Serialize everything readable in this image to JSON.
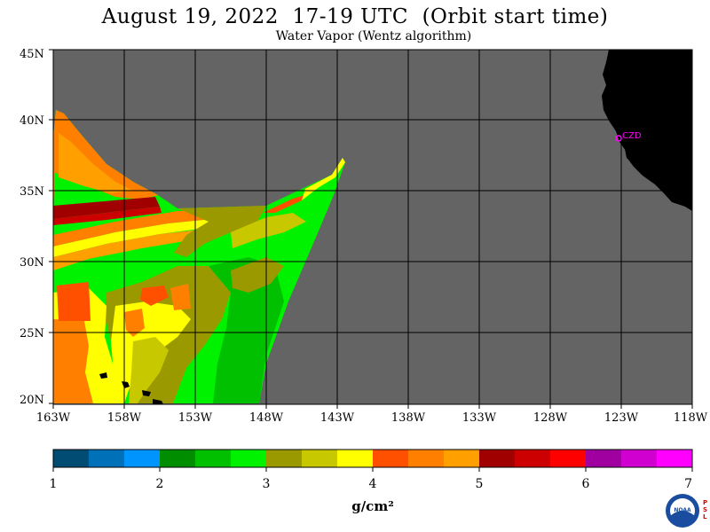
{
  "header": {
    "title": "August 19, 2022  17-19 UTC  (Orbit start time)",
    "subtitle": "Water Vapor (Wentz algorithm)"
  },
  "map": {
    "lat_labels": [
      "45N",
      "40N",
      "35N",
      "30N",
      "25N",
      "20N"
    ],
    "lon_labels": [
      "163W",
      "158W",
      "153W",
      "148W",
      "143W",
      "138W",
      "133W",
      "128W",
      "123W",
      "118W"
    ],
    "marker_label": "CZD",
    "colors": {
      "ocean_nodata": "#646464",
      "land": "#000000",
      "grid": "#000000",
      "marker": "#ff00ff"
    }
  },
  "colorbar": {
    "tick_labels": [
      "1",
      "2",
      "3",
      "4",
      "5",
      "6",
      "7"
    ],
    "units": "g/cm²",
    "colors": [
      "#004c72",
      "#0070b8",
      "#0094ff",
      "#008e00",
      "#00c000",
      "#00f200",
      "#9a9a00",
      "#c8c800",
      "#ffff00",
      "#ff5000",
      "#ff8000",
      "#ffa000",
      "#a00000",
      "#cc0000",
      "#ff0000",
      "#a000a0",
      "#d000d0",
      "#ff00ff"
    ]
  },
  "logo": {
    "text": "NOAA",
    "side_text": "PSL"
  }
}
